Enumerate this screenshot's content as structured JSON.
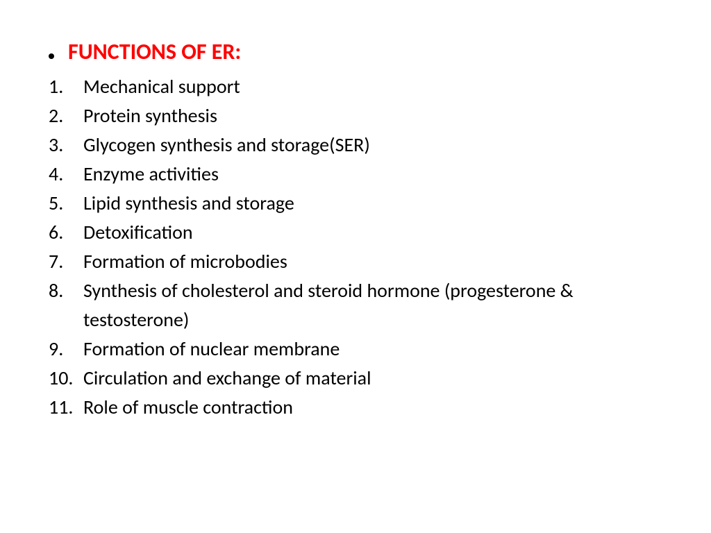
{
  "title": "FUNCTIONS OF ER:",
  "title_color": "#ff0000",
  "text_color": "#000000",
  "background_color": "#ffffff",
  "title_fontsize": 32,
  "list_fontsize": 28,
  "items": [
    {
      "num": "1.",
      "text": " Mechanical support"
    },
    {
      "num": "2.",
      "text": " Protein synthesis"
    },
    {
      "num": "3.",
      "text": " Glycogen synthesis and storage(SER)"
    },
    {
      "num": "4.",
      "text": " Enzyme activities"
    },
    {
      "num": "5.",
      "text": "Lipid synthesis and storage"
    },
    {
      "num": "6.",
      "text": "Detoxification"
    },
    {
      "num": "7.",
      "text": "Formation of microbodies"
    },
    {
      "num": "8.",
      "text": "Synthesis  of cholesterol and steroid hormone (progesterone & testosterone)"
    },
    {
      "num": "9.",
      "text": " Formation of nuclear membrane"
    },
    {
      "num": "10.",
      "text": " Circulation and exchange of material"
    },
    {
      "num": "11.",
      "text": " Role of muscle contraction"
    }
  ]
}
